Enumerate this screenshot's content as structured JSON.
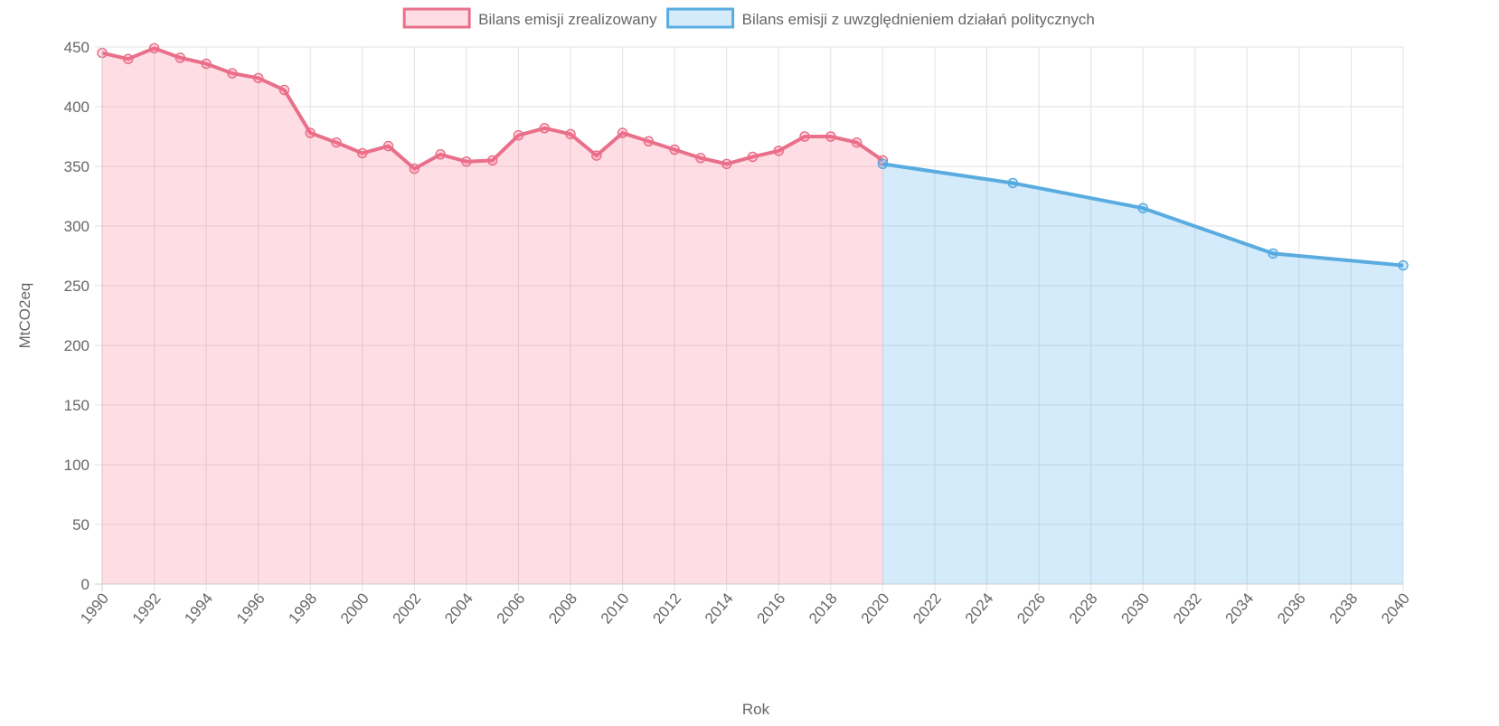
{
  "chart_data": {
    "type": "line",
    "xlabel": "Rok",
    "ylabel": "MtCO2eq",
    "xlim": [
      1990,
      2040
    ],
    "xticks": [
      1990,
      1992,
      1994,
      1996,
      1998,
      2000,
      2002,
      2004,
      2006,
      2008,
      2010,
      2012,
      2014,
      2016,
      2018,
      2020,
      2022,
      2024,
      2026,
      2028,
      2030,
      2032,
      2034,
      2036,
      2038,
      2040
    ],
    "ylim": [
      0,
      450
    ],
    "yticks": [
      0,
      50,
      100,
      150,
      200,
      250,
      300,
      350,
      400,
      450
    ],
    "grid": true,
    "legend": "top",
    "series": [
      {
        "name": "Bilans emisji zrealizowany",
        "color": "#e8708a",
        "fill": "rgba(255,99,132,0.22)",
        "x": [
          1990,
          1991,
          1992,
          1993,
          1994,
          1995,
          1996,
          1997,
          1998,
          1999,
          2000,
          2001,
          2002,
          2003,
          2004,
          2005,
          2006,
          2007,
          2008,
          2009,
          2010,
          2011,
          2012,
          2013,
          2014,
          2015,
          2016,
          2017,
          2018,
          2019,
          2020
        ],
        "values": [
          445,
          440,
          449,
          441,
          436,
          428,
          424,
          414,
          378,
          370,
          361,
          367,
          348,
          360,
          354,
          355,
          376,
          382,
          377,
          359,
          378,
          371,
          364,
          357,
          352,
          358,
          363,
          375,
          375,
          370,
          355
        ]
      },
      {
        "name": "Bilans emisji z uwzględnieniem działań politycznych",
        "color": "#5aace0",
        "fill": "rgba(54,162,235,0.22)",
        "x": [
          2020,
          2025,
          2030,
          2035,
          2040
        ],
        "values": [
          352,
          336,
          315,
          277,
          267
        ]
      }
    ]
  }
}
